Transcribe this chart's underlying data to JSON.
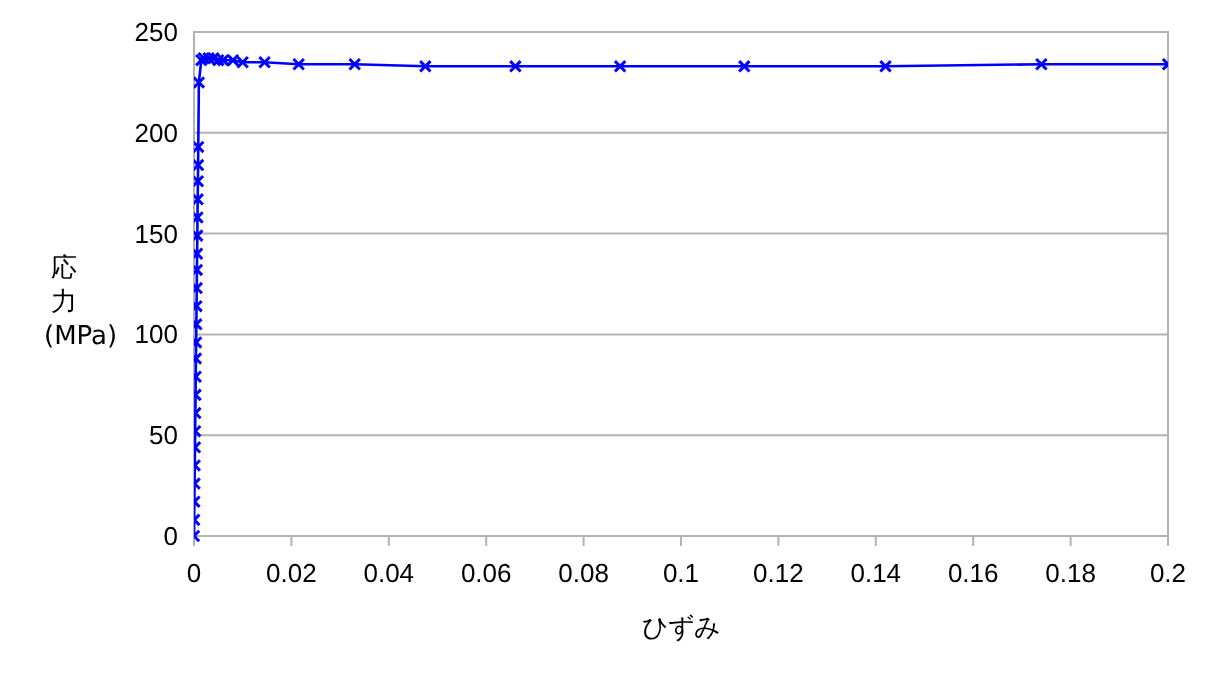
{
  "chart_data": {
    "type": "line",
    "xlabel": "ひずみ",
    "ylabel": "応力 (MPa)",
    "x": [
      0,
      4e-05,
      8e-05,
      0.00012,
      0.00016,
      0.0002,
      0.00024,
      0.00028,
      0.00032,
      0.00036,
      0.0004,
      0.00044,
      0.00048,
      0.00052,
      0.00056,
      0.0006,
      0.00064,
      0.00068,
      0.00072,
      0.00076,
      0.0008,
      0.00084,
      0.00088,
      0.001,
      0.0015,
      0.002,
      0.003,
      0.004,
      0.005,
      0.006,
      0.008,
      0.01,
      0.0145,
      0.0215,
      0.033,
      0.0475,
      0.066,
      0.0875,
      0.113,
      0.142,
      0.174,
      0.2
    ],
    "series": [
      {
        "color": "#0000ff",
        "values": [
          0,
          8,
          17,
          26,
          35,
          44,
          52,
          61,
          70,
          79,
          88,
          96,
          105,
          114,
          123,
          132,
          140,
          149,
          158,
          167,
          176,
          184,
          193,
          225,
          236,
          237,
          237,
          237,
          236,
          236,
          236,
          235,
          235,
          234,
          234,
          233,
          233,
          233,
          233,
          233,
          234,
          234
        ]
      }
    ],
    "xlim": [
      0,
      0.2
    ],
    "xticks": [
      0,
      0.02,
      0.04,
      0.06,
      0.08,
      0.1,
      0.12,
      0.14,
      0.16,
      0.18,
      0.2
    ],
    "ylim": [
      0,
      250
    ],
    "yticks": [
      0,
      50,
      100,
      150,
      200,
      250
    ],
    "grid": "y",
    "marker": "cross",
    "line_style": "solid"
  }
}
